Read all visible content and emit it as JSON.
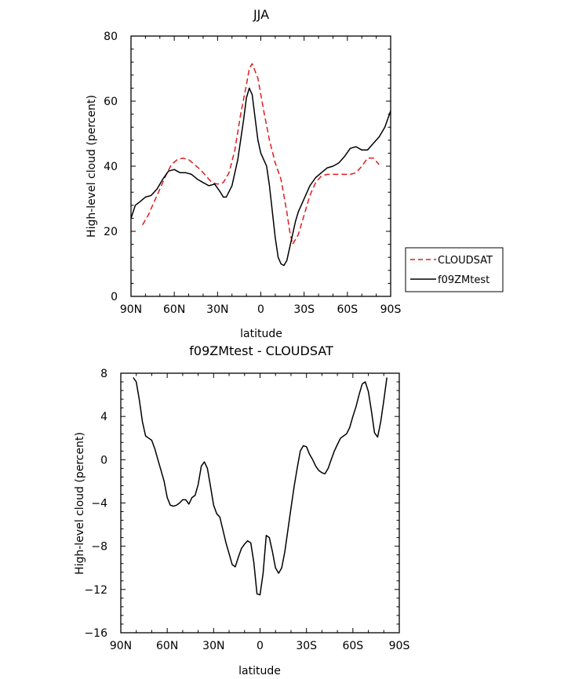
{
  "chart_data": [
    {
      "type": "line",
      "title": "JJA",
      "xlabel": "latitude",
      "ylabel": "High-level cloud (percent)",
      "xlim": [
        90,
        -90
      ],
      "ylim": [
        0,
        80
      ],
      "x_ticks": [
        90,
        60,
        30,
        0,
        -30,
        -60,
        -90
      ],
      "x_tick_labels": [
        "90N",
        "60N",
        "30N",
        "0",
        "30S",
        "60S",
        "90S"
      ],
      "y_ticks": [
        0,
        20,
        40,
        60,
        80
      ],
      "y_tick_labels": [
        "0",
        "20",
        "40",
        "60",
        "80"
      ],
      "legend_placement": "right",
      "series": [
        {
          "name": "CLOUDSAT",
          "color": "#e41a1c",
          "dash": "dashed",
          "x": [
            82,
            78,
            74,
            70,
            66,
            62,
            58,
            54,
            50,
            46,
            42,
            38,
            34,
            30,
            26,
            22,
            18,
            14,
            10,
            8,
            6,
            2,
            -2,
            -6,
            -10,
            -14,
            -18,
            -20,
            -22,
            -26,
            -30,
            -34,
            -38,
            -42,
            -46,
            -50,
            -54,
            -58,
            -62,
            -66,
            -70,
            -74,
            -78,
            -82
          ],
          "y": [
            22,
            25,
            29,
            33,
            37,
            40.5,
            42,
            42.5,
            42,
            40.5,
            39,
            37,
            35,
            34.5,
            35,
            38,
            45,
            56,
            65,
            70,
            71.5,
            67,
            57,
            48,
            41,
            36,
            26,
            20,
            16,
            19,
            25,
            31,
            35,
            37,
            37.5,
            37.5,
            37.5,
            37.5,
            37.5,
            38,
            40,
            42.5,
            42.5,
            40.5
          ]
        },
        {
          "name": "f09ZMtest",
          "color": "#000000",
          "dash": "solid",
          "x": [
            90,
            87,
            84,
            80,
            76,
            72,
            68,
            64,
            60,
            56,
            52,
            48,
            44,
            40,
            36,
            32,
            28,
            26,
            24,
            20,
            16,
            12,
            10,
            8,
            6,
            4,
            2,
            0,
            -2,
            -4,
            -6,
            -8,
            -10,
            -12,
            -14,
            -16,
            -18,
            -20,
            -22,
            -24,
            -26,
            -30,
            -34,
            -38,
            -42,
            -46,
            -50,
            -54,
            -58,
            -62,
            -66,
            -70,
            -74,
            -78,
            -82,
            -86,
            -90
          ],
          "y": [
            24,
            28,
            29,
            30.5,
            31,
            33,
            36,
            38.5,
            39,
            38,
            38,
            37.5,
            36,
            35,
            34,
            34.5,
            32,
            30.5,
            30.5,
            34,
            42,
            54,
            61,
            64,
            62,
            55,
            48,
            44,
            42,
            40,
            34,
            26,
            18,
            12,
            10,
            9.5,
            11,
            15,
            19,
            23,
            26,
            30,
            34,
            36.5,
            38,
            39.5,
            40,
            41,
            43,
            45.5,
            46,
            45,
            45,
            47,
            49,
            52,
            57
          ]
        }
      ]
    },
    {
      "type": "line",
      "title": "f09ZMtest - CLOUDSAT",
      "xlabel": "latitude",
      "ylabel": "High-level cloud (percent)",
      "xlim": [
        90,
        -90
      ],
      "ylim": [
        -16,
        8
      ],
      "x_ticks": [
        90,
        60,
        30,
        0,
        -30,
        -60,
        -90
      ],
      "x_tick_labels": [
        "90N",
        "60N",
        "30N",
        "0",
        "30S",
        "60S",
        "90S"
      ],
      "y_ticks": [
        8,
        4,
        0,
        -4,
        -8,
        -12,
        -16
      ],
      "y_tick_labels": [
        "8",
        "4",
        "0",
        "−4",
        "−8",
        "−12",
        "−16"
      ],
      "series": [
        {
          "color": "#000000",
          "dash": "solid",
          "x": [
            82,
            80,
            78,
            76,
            74,
            72,
            70,
            68,
            66,
            64,
            62,
            60,
            58,
            56,
            54,
            52,
            50,
            48,
            46,
            44,
            42,
            40,
            38,
            36,
            34,
            32,
            30,
            28,
            26,
            24,
            22,
            20,
            18,
            16,
            14,
            12,
            10,
            8,
            6,
            4,
            2,
            0,
            -2,
            -4,
            -6,
            -8,
            -10,
            -12,
            -14,
            -16,
            -18,
            -20,
            -22,
            -24,
            -26,
            -28,
            -30,
            -32,
            -34,
            -36,
            -38,
            -40,
            -42,
            -44,
            -46,
            -48,
            -50,
            -52,
            -54,
            -56,
            -58,
            -60,
            -62,
            -64,
            -66,
            -68,
            -70,
            -72,
            -74,
            -76,
            -78,
            -80,
            -82
          ],
          "y": [
            7.6,
            7.2,
            5.5,
            3.5,
            2.2,
            2.0,
            1.8,
            1.0,
            0,
            -1,
            -2,
            -3.5,
            -4.2,
            -4.3,
            -4.2,
            -4.0,
            -3.7,
            -3.7,
            -4.1,
            -3.5,
            -3.3,
            -2.3,
            -0.6,
            -0.2,
            -0.8,
            -2.5,
            -4.2,
            -5,
            -5.3,
            -6.5,
            -7.7,
            -8.7,
            -9.7,
            -9.9,
            -9.0,
            -8.2,
            -7.8,
            -7.5,
            -7.7,
            -9.5,
            -12.4,
            -12.5,
            -10.5,
            -7.0,
            -7.2,
            -8.5,
            -10,
            -10.5,
            -10.0,
            -8.5,
            -6.5,
            -4.5,
            -2.5,
            -0.8,
            0.8,
            1.3,
            1.2,
            0.5,
            0,
            -0.6,
            -1.0,
            -1.2,
            -1.3,
            -0.8,
            0,
            0.8,
            1.4,
            2.0,
            2.2,
            2.4,
            3.0,
            4.0,
            4.9,
            6.0,
            7.0,
            7.2,
            6.3,
            4.5,
            2.5,
            2.1,
            3.5,
            5.5,
            7.6
          ]
        }
      ]
    }
  ]
}
